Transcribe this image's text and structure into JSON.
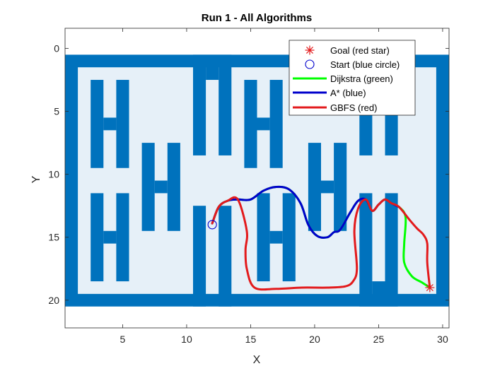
{
  "chart_data": {
    "type": "line",
    "title": "Run 1 - All Algorithms",
    "xlabel": "X",
    "ylabel": "Y",
    "xlim": [
      0.5,
      30.5
    ],
    "ylim": [
      22.2,
      -1.6
    ],
    "y_reversed": true,
    "xticks": [
      5,
      10,
      15,
      20,
      25,
      30
    ],
    "yticks": [
      0,
      5,
      10,
      15,
      20
    ],
    "grid": false,
    "legend_position": "top-right",
    "colors": {
      "obstacle": "#0072BD",
      "free_space": "#E6F0F8",
      "dijkstra": "#00FF00",
      "astar": "#0000CC",
      "gbfs": "#E31A1C",
      "goal": "#E31A1C",
      "start": "#0000CC"
    },
    "map": {
      "outer_walls": [
        [
          0.5,
          0.5,
          30.5,
          20.5
        ]
      ],
      "inner_free_area": [
        [
          1.5,
          1.5,
          29.5,
          19.5
        ]
      ],
      "obstacles": [
        [
          2.5,
          2.5,
          3.5,
          9.5
        ],
        [
          4.5,
          2.5,
          5.5,
          9.5
        ],
        [
          3.5,
          5.5,
          4.5,
          6.5
        ],
        [
          2.5,
          11.5,
          3.5,
          18.5
        ],
        [
          4.5,
          11.5,
          5.5,
          18.5
        ],
        [
          3.5,
          14.5,
          4.5,
          15.5
        ],
        [
          6.5,
          7.5,
          7.5,
          14.5
        ],
        [
          8.5,
          7.5,
          9.5,
          14.5
        ],
        [
          7.5,
          10.5,
          8.5,
          11.5
        ],
        [
          10.5,
          0.5,
          11.5,
          8.5
        ],
        [
          12.5,
          0.5,
          13.5,
          8.5
        ],
        [
          11.5,
          0.5,
          12.5,
          2.5
        ],
        [
          10.5,
          12.5,
          11.5,
          20.5
        ],
        [
          12.5,
          12.5,
          13.5,
          20.5
        ],
        [
          14.5,
          2.5,
          15.5,
          9.5
        ],
        [
          16.5,
          2.5,
          17.5,
          9.5
        ],
        [
          15.5,
          5.5,
          16.5,
          6.5
        ],
        [
          15.5,
          11.5,
          16.5,
          18.5
        ],
        [
          17.5,
          11.5,
          18.5,
          18.5
        ],
        [
          16.5,
          14.5,
          17.5,
          15.5
        ],
        [
          19.5,
          7.5,
          20.5,
          14.5
        ],
        [
          21.5,
          7.5,
          22.5,
          14.5
        ],
        [
          20.5,
          10.5,
          21.5,
          11.5
        ],
        [
          23.5,
          3.5,
          24.5,
          8.5
        ],
        [
          25.5,
          3.5,
          26.5,
          8.5
        ],
        [
          23.5,
          11.5,
          24.5,
          20.5
        ],
        [
          25.5,
          11.5,
          26.5,
          20.5
        ],
        [
          24.5,
          18.5,
          25.5,
          20.5
        ]
      ]
    },
    "series": [
      {
        "name": "Dijkstra (green)",
        "x": [
          12,
          12.5,
          13.2,
          14,
          15,
          16,
          17,
          18,
          18.9,
          19.5,
          20.2,
          21,
          21.5,
          22,
          22.8,
          23.4,
          24,
          24.5,
          25,
          25.5,
          26,
          26.6,
          27.1,
          27,
          27,
          27.6,
          28.4,
          29
        ],
        "y": [
          13.9,
          12.6,
          12.1,
          12,
          12,
          11.3,
          11,
          11.2,
          12.3,
          14,
          14.9,
          15,
          14.6,
          14.4,
          13,
          12.1,
          12,
          12.9,
          12.4,
          12,
          12.3,
          12.6,
          13.4,
          15.5,
          17,
          18.1,
          18.6,
          19
        ]
      },
      {
        "name": "A* (blue)",
        "x": [
          12,
          12.5,
          13.2,
          14,
          15,
          16,
          17,
          18,
          18.9,
          19.5,
          20.2,
          21,
          21.5,
          22,
          22.8,
          23.4,
          24,
          24.5,
          25,
          25.5,
          26,
          26.6
        ],
        "y": [
          13.9,
          12.6,
          12.1,
          12,
          12,
          11.3,
          11,
          11.2,
          12.3,
          14,
          14.9,
          15,
          14.6,
          14.4,
          13,
          12.1,
          12,
          12.9,
          12.4,
          12,
          12.3,
          12.6
        ]
      },
      {
        "name": "GBFS (red)",
        "x": [
          12,
          12.5,
          13.2,
          14,
          14.7,
          14.6,
          14.7,
          15.3,
          17,
          19,
          21,
          22.4,
          23,
          23.3,
          23.1,
          23.4,
          24,
          24.5,
          25,
          25.5,
          26,
          26.6,
          27.4,
          28,
          28.5,
          28.8,
          28.8,
          29
        ],
        "y": [
          13.9,
          12.6,
          12.1,
          12,
          14.5,
          16,
          17.5,
          19,
          19.1,
          19,
          19,
          18.9,
          18.5,
          17.5,
          14.5,
          12.7,
          12,
          12.9,
          12.4,
          12,
          12.3,
          12.6,
          13.6,
          14.3,
          14.8,
          15.5,
          17,
          19
        ]
      }
    ],
    "markers": {
      "goal": {
        "name": "Goal (red star)",
        "x": 29,
        "y": 19,
        "symbol": "*"
      },
      "start": {
        "name": "Start (blue circle)",
        "x": 12,
        "y": 14,
        "symbol": "o"
      }
    },
    "legend": [
      "Goal (red star)",
      "Start (blue circle)",
      "Dijkstra (green)",
      "A* (blue)",
      "GBFS (red)"
    ]
  }
}
